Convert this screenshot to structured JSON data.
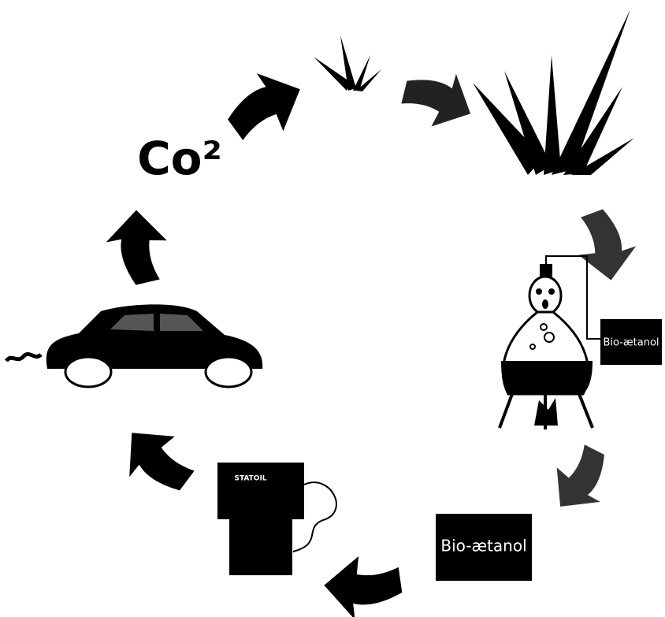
{
  "co2": {
    "label": "Co²"
  },
  "distillation": {
    "label": "Bio-ætanol"
  },
  "pump": {
    "label": "STATOIL"
  },
  "product": {
    "label": "Bio-ætanol"
  }
}
